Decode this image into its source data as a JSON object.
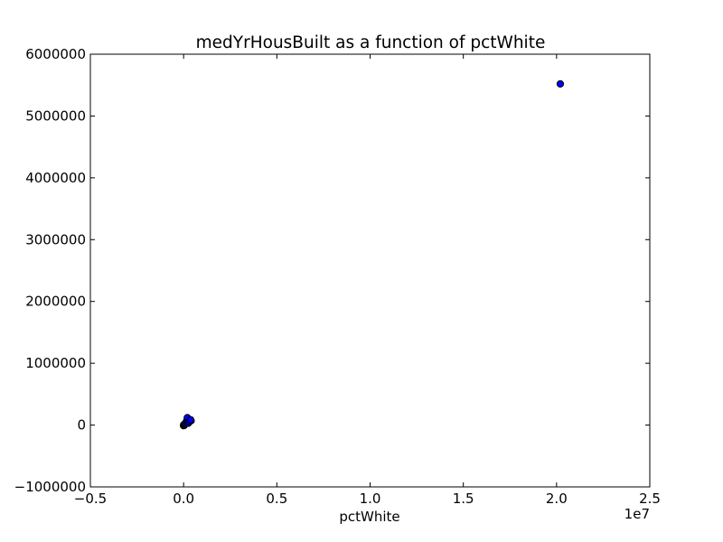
{
  "chart_data": {
    "type": "scatter",
    "title": "medYrHousBuilt as a function of pctWhite",
    "xlabel": "pctWhite",
    "ylabel": "",
    "x_offset_label": "1e7",
    "xlim": [
      -0.5,
      2.5
    ],
    "ylim": [
      -1000000,
      6000000
    ],
    "x_ticks": [
      {
        "value": -0.5,
        "label": "−0.5"
      },
      {
        "value": 0.0,
        "label": "0.0"
      },
      {
        "value": 0.5,
        "label": "0.5"
      },
      {
        "value": 1.0,
        "label": "1.0"
      },
      {
        "value": 1.5,
        "label": "1.5"
      },
      {
        "value": 2.0,
        "label": "2.0"
      },
      {
        "value": 2.5,
        "label": "2.5"
      }
    ],
    "y_ticks": [
      {
        "value": -1000000,
        "label": "−1000000"
      },
      {
        "value": 0,
        "label": "0"
      },
      {
        "value": 1000000,
        "label": "1000000"
      },
      {
        "value": 2000000,
        "label": "2000000"
      },
      {
        "value": 3000000,
        "label": "3000000"
      },
      {
        "value": 4000000,
        "label": "4000000"
      },
      {
        "value": 5000000,
        "label": "5000000"
      },
      {
        "value": 6000000,
        "label": "6000000"
      }
    ],
    "grid": false,
    "marker_color": "#0000ff",
    "marker_edge_color": "#000000",
    "series": [
      {
        "points": [
          {
            "x": 0.0,
            "y": -10000
          },
          {
            "x": 0.0,
            "y": 5000
          },
          {
            "x": 0.003,
            "y": -5000
          },
          {
            "x": 0.005,
            "y": 10000
          },
          {
            "x": 0.008,
            "y": 20000
          },
          {
            "x": 0.012,
            "y": 40000
          },
          {
            "x": 0.015,
            "y": 60000
          },
          {
            "x": 0.02,
            "y": 90000
          },
          {
            "x": 0.02,
            "y": 120000
          },
          {
            "x": 0.025,
            "y": 30000
          },
          {
            "x": 0.03,
            "y": 50000
          },
          {
            "x": 0.04,
            "y": 70000
          },
          {
            "x": 0.038,
            "y": 85000
          },
          {
            "x": 2.02,
            "y": 5520000
          }
        ]
      }
    ]
  }
}
